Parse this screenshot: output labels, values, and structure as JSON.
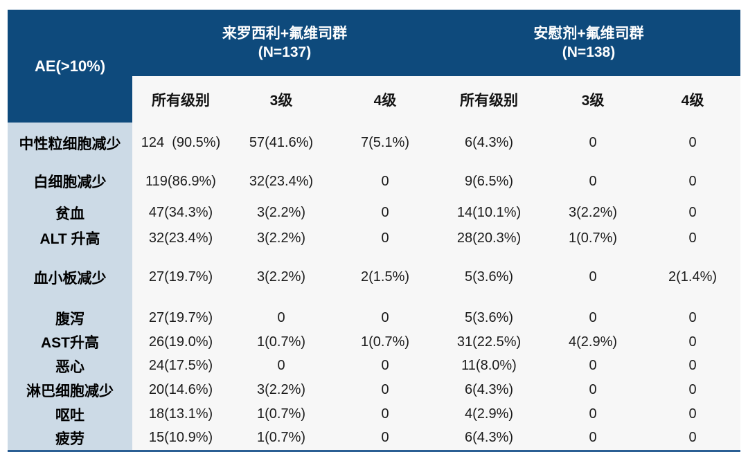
{
  "table": {
    "corner_header": "AE(>10%)",
    "groups": [
      {
        "title": "来罗西利+氟维司群",
        "n": "(N=137)"
      },
      {
        "title": "安慰剂+氟维司群",
        "n": "(N=138)"
      }
    ],
    "sub_headers": [
      "所有级别",
      "3级",
      "4级",
      "所有级别",
      "3级",
      "4级"
    ],
    "rows": [
      {
        "label": "中性粒细胞减少",
        "values": [
          "124  (90.5%)",
          "57(41.6%)",
          "7(5.1%)",
          "6(4.3%)",
          "0",
          "0"
        ]
      },
      {
        "label": "白细胞减少",
        "values": [
          "119(86.9%)",
          "32(23.4%)",
          "0",
          "9(6.5%)",
          "0",
          "0"
        ]
      },
      {
        "label": "贫血",
        "values": [
          "47(34.3%)",
          "3(2.2%)",
          "0",
          "14(10.1%)",
          "3(2.2%)",
          "0"
        ]
      },
      {
        "label": "ALT 升高",
        "values": [
          "32(23.4%)",
          "3(2.2%)",
          "0",
          "28(20.3%)",
          "1(0.7%)",
          "0"
        ]
      },
      {
        "label": "血小板减少",
        "values": [
          "27(19.7%)",
          "3(2.2%)",
          "2(1.5%)",
          "5(3.6%)",
          "0",
          "2(1.4%)"
        ]
      },
      {
        "label": "腹泻",
        "values": [
          "27(19.7%)",
          "0",
          "0",
          "5(3.6%)",
          "0",
          "0"
        ]
      },
      {
        "label": "AST升高",
        "values": [
          "26(19.0%)",
          "1(0.7%)",
          "1(0.7%)",
          "31(22.5%)",
          "4(2.9%)",
          "0"
        ]
      },
      {
        "label": "恶心",
        "values": [
          "24(17.5%)",
          "0",
          "0",
          "11(8.0%)",
          "0",
          "0"
        ]
      },
      {
        "label": "淋巴细胞减少",
        "values": [
          "20(14.6%)",
          "3(2.2%)",
          "0",
          "6(4.3%)",
          "0",
          "0"
        ]
      },
      {
        "label": "呕吐",
        "values": [
          "18(13.1%)",
          "1(0.7%)",
          "0",
          "4(2.9%)",
          "0",
          "0"
        ]
      },
      {
        "label": "疲劳",
        "values": [
          "15(10.9%)",
          "1(0.7%)",
          "0",
          "6(4.3%)",
          "0",
          "0"
        ]
      }
    ],
    "colors": {
      "header_blue": "#0e4a7c",
      "row_label_background": "#ccdae6",
      "body_background": "#f7f7f7",
      "bottom_border_blue": "#2b5f94",
      "header_text": "#ffffff",
      "body_text": "#1b1b1b"
    }
  }
}
